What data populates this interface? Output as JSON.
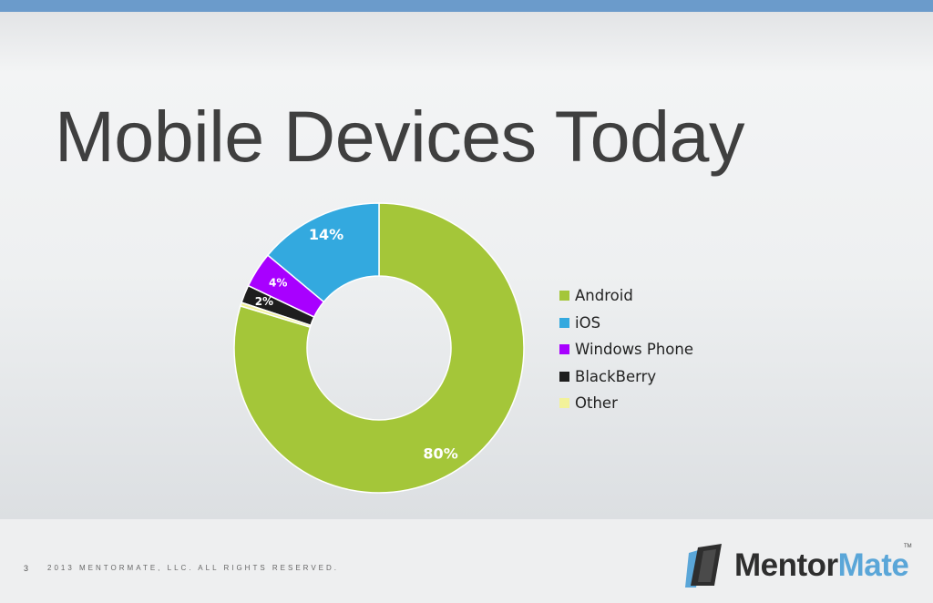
{
  "slide": {
    "title": "Mobile Devices Today",
    "page_number": "3",
    "copyright": "2013 MENTORMATE, LLC. ALL RIGHTS RESERVED.",
    "logo": {
      "part1": "Mentor",
      "part2": "Mate",
      "tm": "TM"
    }
  },
  "colors": {
    "top_bar": "#6b9bcb",
    "title": "#3f3f3f",
    "logo_blue": "#5aa6d8"
  },
  "chart_data": {
    "type": "pie",
    "style": "donut",
    "categories": [
      "Android",
      "iOS",
      "Windows Phone",
      "BlackBerry",
      "Other"
    ],
    "values": [
      80,
      14,
      4,
      2,
      0.4
    ],
    "labels": [
      "80%",
      "14%",
      "4%",
      "2%",
      ""
    ],
    "colors": [
      "#a4c639",
      "#33a9df",
      "#a800ff",
      "#1e1e1e",
      "#f2f29a"
    ],
    "legend_position": "right"
  }
}
